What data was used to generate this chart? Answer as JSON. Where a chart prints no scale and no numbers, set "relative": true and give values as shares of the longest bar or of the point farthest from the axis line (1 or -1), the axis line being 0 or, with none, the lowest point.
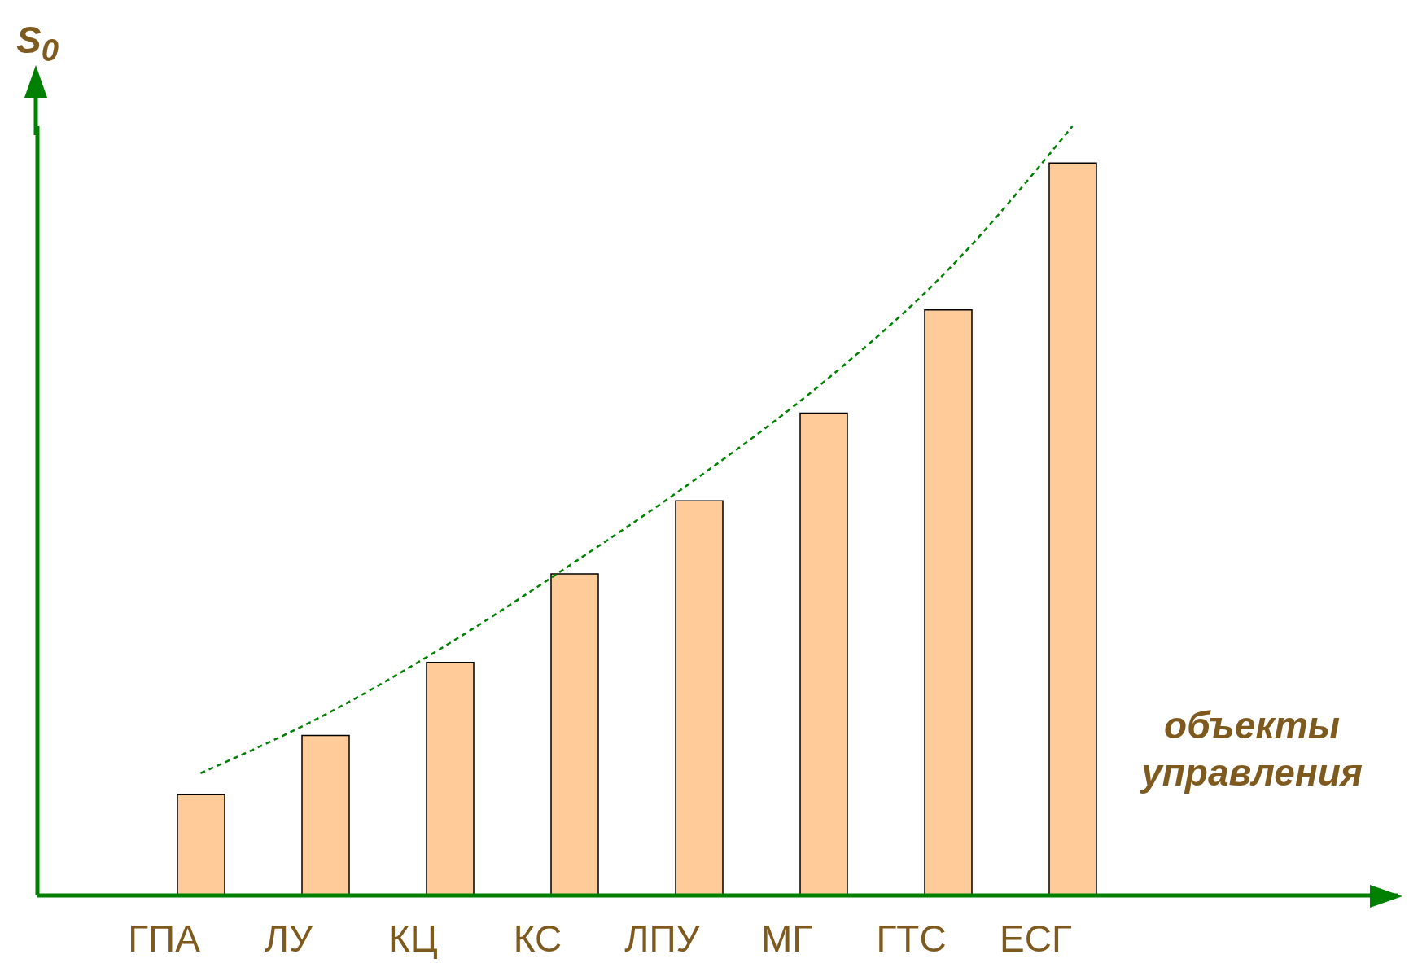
{
  "chart_data": {
    "type": "bar",
    "relative": true,
    "ylabel": "S$_{0}$",
    "xlabel": "объекты управления",
    "categories": [
      "ГПА",
      "ЛУ",
      "КЦ",
      "КС",
      "ЛПУ",
      "МГ",
      "ГТС",
      "ЕСГ"
    ],
    "series": [
      {
        "color": "#ffcc99",
        "values": [
          0.131,
          0.208,
          0.303,
          0.418,
          0.513,
          0.627,
          0.761,
          0.952
        ]
      },
      {
        "type": "line",
        "color": "#008000",
        "line_style": "dashed",
        "marker": "none",
        "values": [
          0.159,
          0.235,
          0.328,
          0.433,
          0.544,
          0.667,
          0.813,
          1
        ]
      }
    ],
    "grid": false,
    "legend": false
  }
}
